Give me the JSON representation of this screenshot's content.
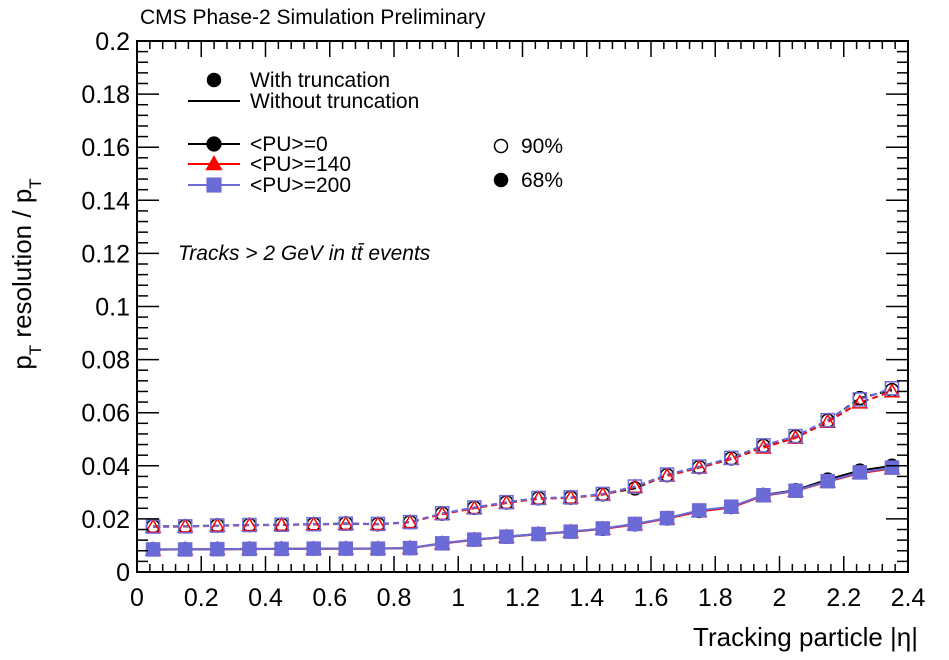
{
  "chart_data": {
    "type": "line",
    "title": "CMS Phase-2 Simulation Preliminary",
    "xlabel": "Tracking particle |η|",
    "ylabel": "p_T resolution / p_T",
    "xlim": [
      0,
      2.4
    ],
    "ylim": [
      0,
      0.2
    ],
    "x_ticks": [
      "0",
      "0.2",
      "0.4",
      "0.6",
      "0.8",
      "1",
      "1.2",
      "1.4",
      "1.6",
      "1.8",
      "2",
      "2.2",
      "2.4"
    ],
    "y_ticks": [
      "0",
      "0.02",
      "0.04",
      "0.06",
      "0.08",
      "0.1",
      "0.12",
      "0.14",
      "0.16",
      "0.18",
      "0.2"
    ],
    "grid": false,
    "annotation": "Tracks > 2 GeV in tt̄ events",
    "legend": {
      "placement": "top-left",
      "style_entries": [
        {
          "label": "With truncation",
          "style": "marker"
        },
        {
          "label": "Without truncation",
          "style": "line"
        }
      ],
      "pu_entries": [
        {
          "label": "<PU>=0",
          "color": "#000000",
          "marker": "circle"
        },
        {
          "label": "<PU>=140",
          "color": "#ff0000",
          "marker": "triangle"
        },
        {
          "label": "<PU>=200",
          "color": "#6b6bd8",
          "marker": "square"
        }
      ],
      "quantile_entries": [
        {
          "label": "90%",
          "fill": "open"
        },
        {
          "label": "68%",
          "fill": "filled"
        }
      ]
    },
    "x": [
      0.05,
      0.15,
      0.25,
      0.35,
      0.45,
      0.55,
      0.65,
      0.75,
      0.85,
      0.95,
      1.05,
      1.15,
      1.25,
      1.35,
      1.45,
      1.55,
      1.65,
      1.75,
      1.85,
      1.95,
      2.05,
      2.15,
      2.25,
      2.35
    ],
    "series": [
      {
        "name": "<PU>=0 90%",
        "pu": "<PU>=0",
        "quantile": "90%",
        "color": "#000000",
        "marker": "circle",
        "filled": false,
        "values": [
          0.0172,
          0.0172,
          0.0175,
          0.0177,
          0.0178,
          0.018,
          0.0183,
          0.018,
          0.0188,
          0.022,
          0.0242,
          0.0262,
          0.0278,
          0.028,
          0.0293,
          0.0315,
          0.0365,
          0.0395,
          0.0428,
          0.0475,
          0.051,
          0.057,
          0.0655,
          0.0685
        ]
      },
      {
        "name": "<PU>=140 90%",
        "pu": "<PU>=140",
        "quantile": "90%",
        "color": "#ff0000",
        "marker": "triangle",
        "filled": false,
        "values": [
          0.017,
          0.0171,
          0.0174,
          0.0176,
          0.0177,
          0.0179,
          0.0181,
          0.018,
          0.0187,
          0.0218,
          0.024,
          0.026,
          0.0276,
          0.0279,
          0.0291,
          0.032,
          0.0362,
          0.0393,
          0.0425,
          0.0468,
          0.0505,
          0.0565,
          0.0638,
          0.068
        ]
      },
      {
        "name": "<PU>=200 90%",
        "pu": "<PU>=200",
        "quantile": "90%",
        "color": "#6b6bd8",
        "marker": "square",
        "filled": false,
        "values": [
          0.0171,
          0.0172,
          0.0175,
          0.0177,
          0.0178,
          0.018,
          0.0182,
          0.0181,
          0.0188,
          0.0221,
          0.0243,
          0.0263,
          0.0279,
          0.0281,
          0.0294,
          0.0322,
          0.0367,
          0.0397,
          0.043,
          0.0477,
          0.0512,
          0.0572,
          0.065,
          0.0692
        ]
      },
      {
        "name": "<PU>=0 68%",
        "pu": "<PU>=0",
        "quantile": "68%",
        "color": "#000000",
        "marker": "circle",
        "filled": true,
        "values": [
          0.0085,
          0.0085,
          0.0086,
          0.0087,
          0.0087,
          0.0088,
          0.0088,
          0.0088,
          0.009,
          0.0108,
          0.0122,
          0.0133,
          0.0143,
          0.0152,
          0.0163,
          0.018,
          0.0202,
          0.023,
          0.0245,
          0.029,
          0.0308,
          0.0348,
          0.0382,
          0.04
        ]
      },
      {
        "name": "<PU>=140 68%",
        "pu": "<PU>=140",
        "quantile": "68%",
        "color": "#ff0000",
        "marker": "triangle",
        "filled": true,
        "values": [
          0.0084,
          0.0085,
          0.0086,
          0.0086,
          0.0087,
          0.0087,
          0.0088,
          0.0088,
          0.009,
          0.0107,
          0.0121,
          0.0132,
          0.0142,
          0.0151,
          0.0162,
          0.0179,
          0.0201,
          0.0228,
          0.0243,
          0.0287,
          0.0305,
          0.034,
          0.0372,
          0.039
        ]
      },
      {
        "name": "<PU>=200 68%",
        "pu": "<PU>=200",
        "quantile": "68%",
        "color": "#6b6bd8",
        "marker": "square",
        "filled": true,
        "values": [
          0.0085,
          0.0085,
          0.0086,
          0.0087,
          0.0087,
          0.0088,
          0.0088,
          0.0088,
          0.009,
          0.0108,
          0.0122,
          0.0133,
          0.0143,
          0.0152,
          0.0164,
          0.0181,
          0.0203,
          0.0232,
          0.0246,
          0.0289,
          0.0306,
          0.0342,
          0.0375,
          0.0393
        ]
      }
    ]
  }
}
